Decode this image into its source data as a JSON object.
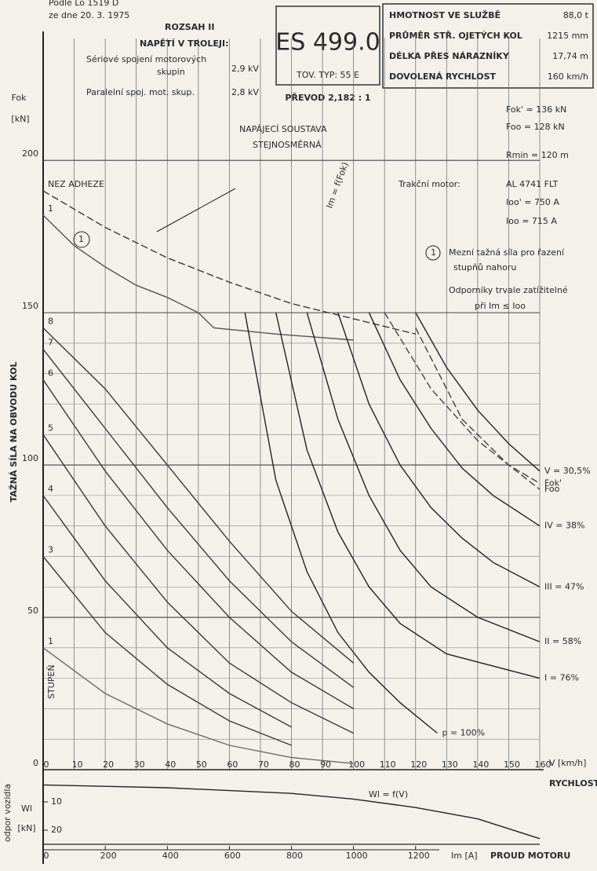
{
  "chart_data": {
    "type": "line",
    "xlim": [
      0,
      160
    ],
    "xticks": [
      0,
      10,
      20,
      30,
      40,
      50,
      60,
      70,
      80,
      90,
      100,
      110,
      120,
      130,
      140,
      150,
      160
    ],
    "ylim": [
      0,
      240
    ],
    "yticks": [
      0,
      50,
      100,
      150,
      200
    ],
    "ygrid": [
      10,
      20,
      30,
      40,
      60,
      70,
      80,
      90,
      110,
      120,
      130,
      140
    ],
    "grid": true,
    "x_label": "V [km/h]",
    "x_caption": "RYCHLOST",
    "y_label": "Fok",
    "y_unit": "[kN]",
    "y_caption": "TAŽNÁ SÍLA NA OBVODU KOL",
    "series": [
      {
        "name": "1",
        "color": "#6a6a6a",
        "dash": false,
        "x": [
          0,
          20,
          40,
          60,
          80,
          100
        ],
        "values": [
          40,
          25,
          15,
          8,
          4,
          2
        ]
      },
      {
        "name": "3",
        "color": "#3a3a3a",
        "dash": false,
        "x": [
          0,
          20,
          40,
          60,
          80
        ],
        "values": [
          70,
          45,
          28,
          16,
          8
        ]
      },
      {
        "name": "4",
        "color": "#3a3a3a",
        "dash": false,
        "x": [
          0,
          20,
          40,
          60,
          80
        ],
        "values": [
          90,
          62,
          40,
          25,
          14
        ]
      },
      {
        "name": "5",
        "color": "#3a3a3a",
        "dash": false,
        "x": [
          0,
          20,
          40,
          60,
          80,
          100
        ],
        "values": [
          110,
          80,
          55,
          35,
          22,
          12
        ]
      },
      {
        "name": "6",
        "color": "#3a3a3a",
        "dash": false,
        "x": [
          0,
          20,
          40,
          60,
          80,
          100
        ],
        "values": [
          128,
          98,
          72,
          50,
          32,
          20
        ]
      },
      {
        "name": "7",
        "color": "#3a3a3a",
        "dash": false,
        "x": [
          0,
          20,
          40,
          60,
          80,
          100
        ],
        "values": [
          138,
          112,
          86,
          62,
          42,
          27
        ]
      },
      {
        "name": "8",
        "color": "#3a3a3a",
        "dash": false,
        "x": [
          0,
          20,
          40,
          60,
          80,
          100
        ],
        "values": [
          145,
          125,
          100,
          75,
          52,
          35
        ]
      },
      {
        "name": "NEZ ADHEZE",
        "color": "#3a3a3a",
        "dash": true,
        "x": [
          0,
          20,
          40,
          60,
          80,
          100,
          120
        ],
        "values": [
          190,
          178,
          168,
          160,
          153,
          148,
          143
        ]
      },
      {
        "name": "1",
        "color": "#555555",
        "dash": false,
        "x": [
          0,
          10,
          20,
          30,
          40,
          50,
          55,
          75,
          100
        ],
        "values": [
          182,
          172,
          165,
          159,
          155,
          150,
          145,
          143,
          141
        ]
      },
      {
        "name": "p = 100%",
        "color": "#222222",
        "dash": false,
        "x": [
          65,
          75,
          85,
          95,
          105,
          115,
          127
        ],
        "values": [
          150,
          95,
          65,
          45,
          32,
          22,
          12
        ]
      },
      {
        "name": "I = 76%",
        "color": "#222222",
        "dash": false,
        "x": [
          75,
          85,
          95,
          105,
          115,
          130,
          160
        ],
        "values": [
          150,
          105,
          78,
          60,
          48,
          38,
          30
        ]
      },
      {
        "name": "II = 58%",
        "color": "#222222",
        "dash": false,
        "x": [
          85,
          95,
          105,
          115,
          125,
          140,
          160
        ],
        "values": [
          150,
          115,
          90,
          72,
          60,
          50,
          42
        ]
      },
      {
        "name": "III = 47%",
        "color": "#222222",
        "dash": false,
        "x": [
          95,
          105,
          115,
          125,
          135,
          145,
          160
        ],
        "values": [
          150,
          120,
          100,
          86,
          76,
          68,
          60
        ]
      },
      {
        "name": "IV = 38%",
        "color": "#222222",
        "dash": false,
        "x": [
          105,
          115,
          125,
          135,
          145,
          160
        ],
        "values": [
          150,
          128,
          112,
          99,
          90,
          80
        ]
      },
      {
        "name": "V = 30,5%",
        "color": "#222222",
        "dash": false,
        "x": [
          120,
          130,
          140,
          150,
          160
        ],
        "values": [
          150,
          132,
          118,
          107,
          98
        ]
      },
      {
        "name": "Fok'",
        "color": "#444444",
        "dash": true,
        "x": [
          110,
          125,
          140,
          150,
          160
        ],
        "values": [
          150,
          125,
          108,
          100,
          94
        ]
      },
      {
        "name": "Foo",
        "color": "#444444",
        "dash": true,
        "x": [
          120,
          135,
          150,
          160
        ],
        "values": [
          145,
          115,
          100,
          92
        ]
      }
    ],
    "resistance": {
      "name": "Wl = f(V)",
      "label": "Wl",
      "unit": "[kN]",
      "caption": "odpor vozidla",
      "wlim": [
        0,
        25
      ],
      "wticks": [
        10,
        20
      ],
      "x": [
        0,
        20,
        40,
        60,
        80,
        100,
        120,
        140,
        160
      ],
      "values": [
        4,
        4.5,
        5,
        6,
        7,
        9,
        12,
        16,
        23
      ]
    },
    "current_axis": {
      "label": "Im [A]",
      "caption": "PROUD MOTORU",
      "ilim": [
        0,
        1600
      ],
      "iticks": [
        0,
        200,
        400,
        600,
        800,
        1000,
        1200
      ]
    },
    "locomotive": {
      "name": "ES 499.0",
      "type": "TOV. TYP: 55 E",
      "gear": "PŘEVOD 2,182 : 1"
    },
    "table": [
      [
        "HMOTNOST VE SLUŽBĚ",
        "88,0 t"
      ],
      [
        "PRŮMĚR STŘ. OJETÝCH KOL",
        "1215 mm"
      ],
      [
        "DÉLKA PŘES NÁRAZNÍKY",
        "17,74 m"
      ],
      [
        "DOVOLENÁ RYCHLOST",
        "160 km/h"
      ]
    ],
    "parameters": [
      "Fok' = 136 kN",
      "Foo = 128 kN",
      "Rmin = 120 m",
      "Ioo' = 750 A",
      "Ioo = 715 A"
    ],
    "annotations": [
      "Podle Lo 1519 D",
      "ze dne 20. 3. 1975",
      "ROZSAH II",
      "NAPĚTÍ V TROLEJI:",
      "Sériové spojení motorových",
      "skupin",
      "2,9 kV",
      "Paralelní spoj. mot. skup.",
      "2,8 kV",
      "NAPÁJECÍ SOUSTAVA",
      "STEJNOSMĚRNÁ",
      "Trakční motor:",
      "AL 4741 FLT",
      "Mezní tažná síla pro řazení",
      "stupňů nahoru",
      "Odporníky trvale zatížitelné",
      "při Im ≤ Ioo",
      "Im = f(Fok)",
      "STUPEŇ",
      "1"
    ]
  }
}
